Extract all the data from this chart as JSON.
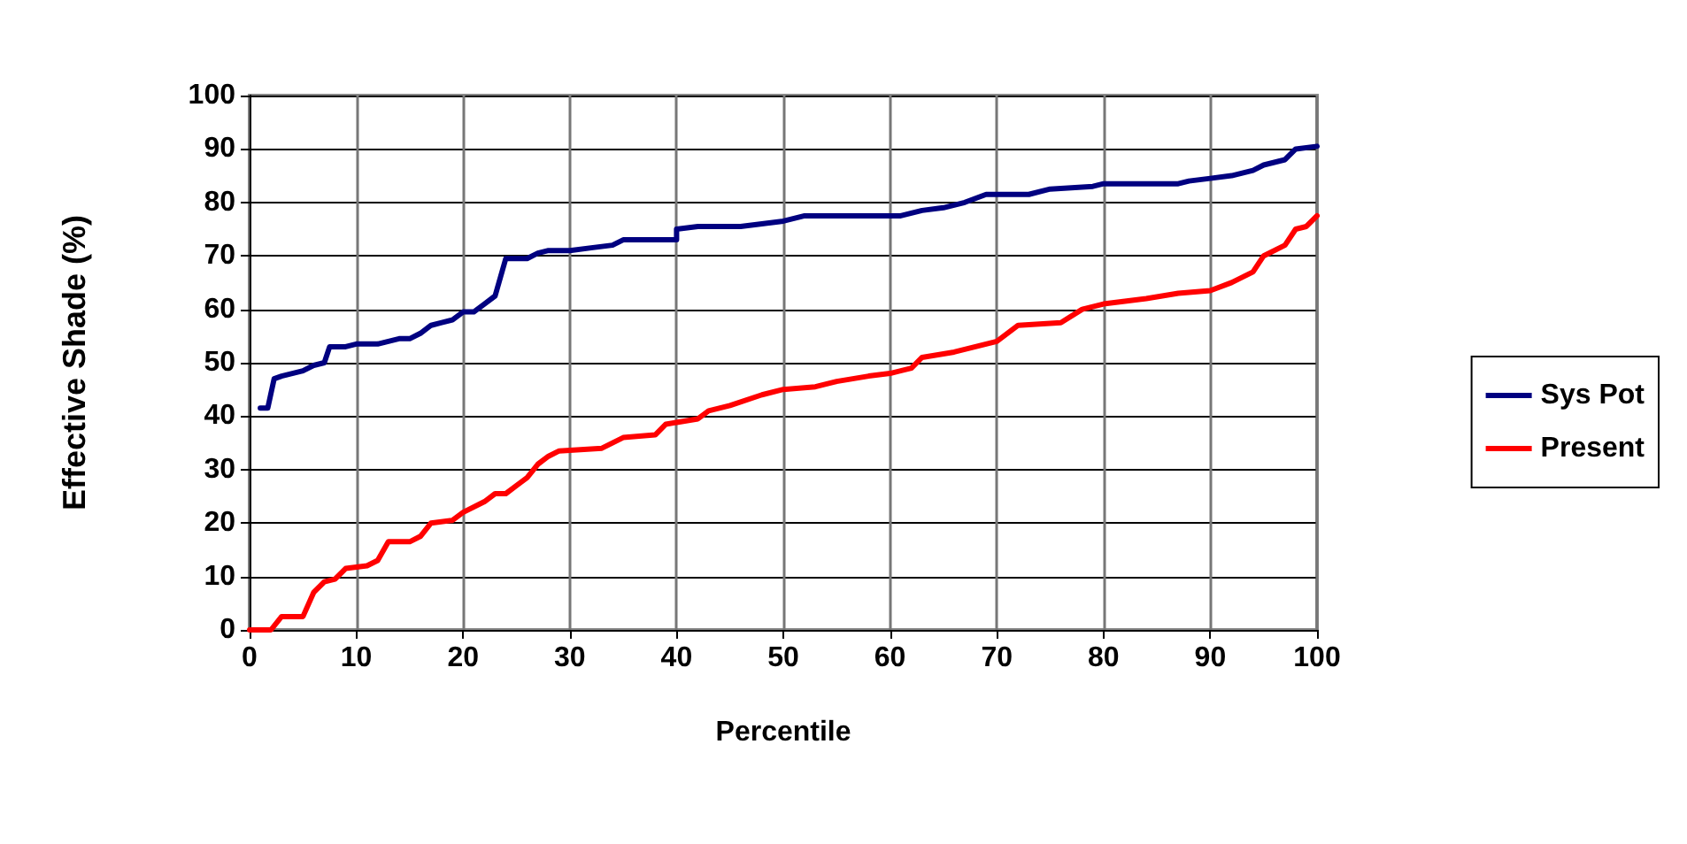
{
  "chart_data": {
    "type": "line",
    "xlabel": "Percentile",
    "ylabel": "Effective Shade (%)",
    "xlim": [
      0,
      100
    ],
    "xticks": [
      0,
      10,
      20,
      30,
      40,
      50,
      60,
      70,
      80,
      90,
      100
    ],
    "ylim": [
      0,
      100
    ],
    "yticks": [
      0,
      10,
      20,
      30,
      40,
      50,
      60,
      70,
      80,
      90,
      100
    ],
    "grid": true,
    "legend": "right",
    "marker": "none",
    "line_style": "solid",
    "series": [
      {
        "name": "Sys Pot",
        "color": "#000080",
        "x": [
          1,
          1.7,
          2.3,
          3,
          4,
          5,
          6,
          7,
          7.5,
          9,
          10,
          12,
          13,
          14,
          15,
          16,
          17,
          18,
          19,
          20,
          21,
          22,
          23,
          24,
          26,
          27,
          28,
          30,
          32,
          34,
          35,
          40,
          40,
          42,
          46,
          48,
          50,
          52,
          55,
          61,
          63,
          65,
          67,
          69,
          73,
          75,
          79,
          80,
          87,
          88,
          90,
          92,
          94,
          95,
          97,
          98,
          100
        ],
        "values": [
          41.5,
          41.5,
          47,
          47.5,
          48,
          48.5,
          49.5,
          50,
          53,
          53,
          53.5,
          53.5,
          54,
          54.5,
          54.5,
          55.5,
          57,
          57.5,
          58,
          59.5,
          59.5,
          61,
          62.5,
          69.5,
          69.5,
          70.5,
          71,
          71,
          71.5,
          72,
          73,
          73,
          75,
          75.5,
          75.5,
          76,
          76.5,
          77.5,
          77.5,
          77.5,
          78.5,
          79,
          80,
          81.5,
          81.5,
          82.5,
          83,
          83.5,
          83.5,
          84,
          84.5,
          85,
          86,
          87,
          88,
          90,
          90.5
        ]
      },
      {
        "name": "Present",
        "color": "#ff0000",
        "x": [
          0,
          2,
          3,
          5,
          6,
          7,
          8,
          9,
          11,
          12,
          13,
          15,
          16,
          17,
          19,
          20,
          22,
          23,
          24,
          25,
          26,
          27,
          28,
          29,
          33,
          34,
          35,
          38,
          39,
          42,
          43,
          45,
          48,
          50,
          53,
          55,
          58,
          60,
          62,
          63,
          66,
          68,
          70,
          72,
          76,
          78,
          80,
          82,
          84,
          87,
          90,
          92,
          94,
          95,
          97,
          98,
          99,
          100
        ],
        "values": [
          0,
          0,
          2.5,
          2.5,
          7,
          9,
          9.5,
          11.5,
          12,
          13,
          16.5,
          16.5,
          17.5,
          20,
          20.5,
          22,
          24,
          25.5,
          25.5,
          27,
          28.5,
          31,
          32.5,
          33.5,
          34,
          35,
          36,
          36.5,
          38.5,
          39.5,
          41,
          42,
          44,
          45,
          45.5,
          46.5,
          47.5,
          48,
          49,
          51,
          52,
          53,
          54,
          57,
          57.5,
          60,
          61,
          61.5,
          62,
          63,
          63.5,
          65,
          67,
          70,
          72,
          75,
          75.5,
          77.5
        ]
      }
    ]
  }
}
